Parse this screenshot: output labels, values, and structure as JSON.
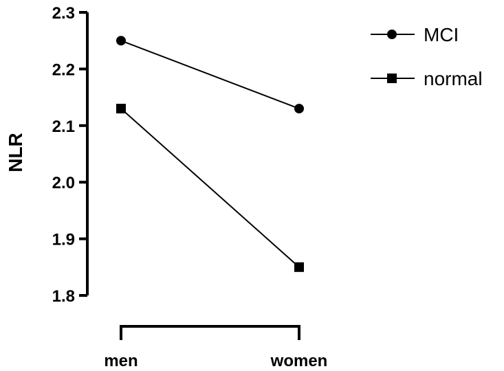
{
  "chart_data": {
    "type": "line",
    "categories": [
      "men",
      "women"
    ],
    "series": [
      {
        "name": "MCI",
        "marker": "circle",
        "values": [
          2.25,
          2.13
        ]
      },
      {
        "name": "normal",
        "marker": "square",
        "values": [
          2.13,
          1.85
        ]
      }
    ],
    "ylabel": "NLR",
    "ylim": [
      1.8,
      2.3
    ],
    "yticks": [
      "1.8",
      "1.9",
      "2.0",
      "2.1",
      "2.2",
      "2.3"
    ],
    "legend_position": "top-right",
    "grid": false,
    "colors": {
      "line": "#000000",
      "marker": "#000000"
    }
  }
}
